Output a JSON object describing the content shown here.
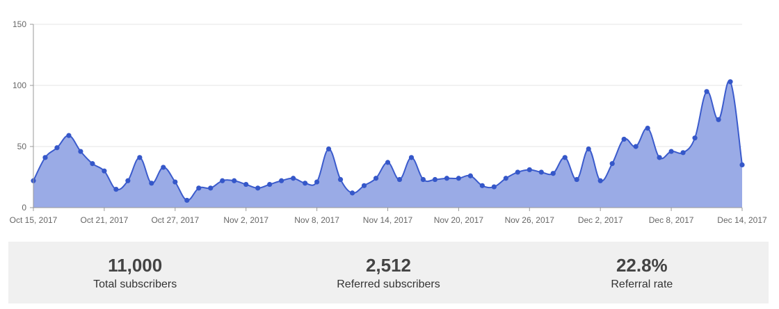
{
  "chart_data": {
    "type": "area",
    "title": "",
    "xlabel": "",
    "ylabel": "",
    "ylim": [
      0,
      150
    ],
    "y_ticks": [
      "0",
      "50",
      "100",
      "150"
    ],
    "x_tick_labels": [
      "Oct 15, 2017",
      "Oct 21, 2017",
      "Oct 27, 2017",
      "Nov 2, 2017",
      "Nov 8, 2017",
      "Nov 14, 2017",
      "Nov 20, 2017",
      "Nov 26, 2017",
      "Dec 2, 2017",
      "Dec 8, 2017",
      "Dec 14, 2017"
    ],
    "x_start": "Oct 15, 2017",
    "x_end": "Dec 14, 2017",
    "grid": true,
    "colors": {
      "line": "#3b5bcc",
      "fill": "#9aabe6",
      "point": "#3557c9"
    },
    "series": [
      {
        "values": [
          22,
          41,
          49,
          59,
          46,
          36,
          30,
          15,
          22,
          41,
          20,
          33,
          21,
          6,
          16,
          16,
          22,
          22,
          19,
          16,
          19,
          22,
          24,
          20,
          21,
          48,
          23,
          12,
          18,
          24,
          37,
          23,
          41,
          23,
          23,
          24,
          24,
          26,
          18,
          17,
          24,
          29,
          31,
          29,
          28,
          41,
          23,
          48,
          22,
          36,
          56,
          50,
          65,
          41,
          46,
          45,
          57,
          95,
          72,
          103,
          35
        ]
      }
    ]
  },
  "stats": [
    {
      "value": "11,000",
      "label": "Total subscribers"
    },
    {
      "value": "2,512",
      "label": "Referred subscribers"
    },
    {
      "value": "22.8%",
      "label": "Referral rate"
    }
  ]
}
